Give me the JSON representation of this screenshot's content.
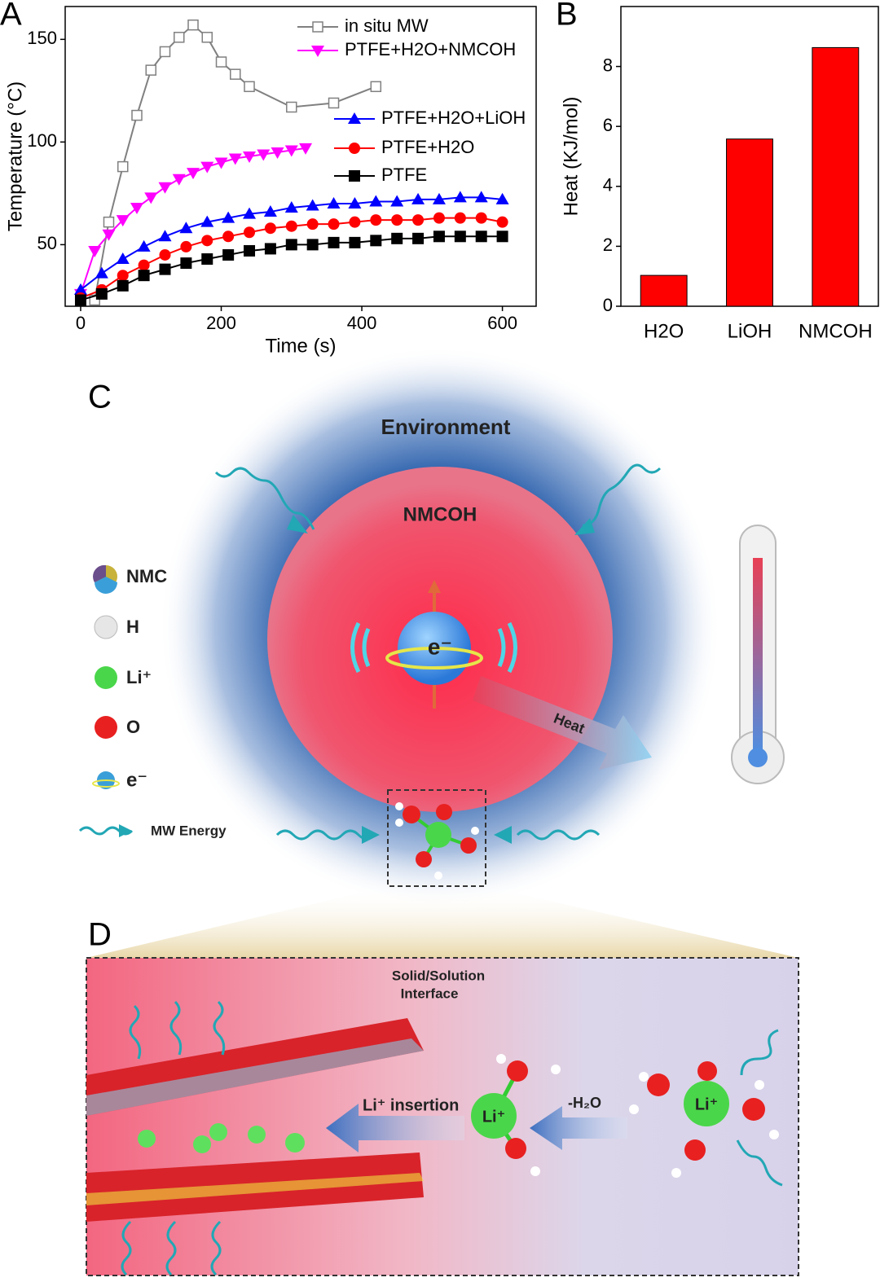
{
  "chart_data": [
    {
      "type": "line",
      "panel": "A",
      "xlabel": "Time (s)",
      "ylabel": "Temperature (°C)",
      "xlim": [
        -22,
        648
      ],
      "xticks": [
        0,
        200,
        400,
        600
      ],
      "ylim": [
        20,
        166
      ],
      "yticks": [
        50,
        100,
        150
      ],
      "legend": "upper right",
      "series": [
        {
          "name": "in situ MW",
          "color": "#808080",
          "marker": "square-open",
          "x": [
            20,
            40,
            60,
            80,
            100,
            120,
            140,
            160,
            180,
            200,
            220,
            240,
            300,
            360,
            420
          ],
          "values": [
            23,
            61,
            88,
            113,
            135,
            144,
            151,
            157,
            151,
            139,
            133,
            127,
            117,
            119,
            127
          ]
        },
        {
          "name": "PTFE+H2O+NMCOH",
          "color": "#ff00ff",
          "marker": "triangle-down",
          "x": [
            0,
            20,
            40,
            60,
            80,
            100,
            120,
            140,
            160,
            180,
            200,
            220,
            240,
            260,
            280,
            300,
            320
          ],
          "values": [
            26,
            47,
            55,
            62,
            68,
            73,
            78,
            82,
            85,
            88,
            90,
            92,
            93,
            94,
            95,
            96,
            97
          ]
        },
        {
          "name": "PTFE+H2O+LiOH",
          "color": "#0000ff",
          "marker": "triangle-up",
          "x": [
            0,
            30,
            60,
            90,
            120,
            150,
            180,
            210,
            240,
            270,
            300,
            330,
            360,
            390,
            420,
            450,
            480,
            510,
            540,
            570,
            600
          ],
          "values": [
            28,
            36,
            43,
            49,
            54,
            58,
            61,
            63,
            65,
            66,
            68,
            69,
            70,
            70,
            71,
            71,
            72,
            72,
            73,
            73,
            72
          ]
        },
        {
          "name": "PTFE+H2O",
          "color": "#ff0000",
          "marker": "circle",
          "x": [
            0,
            30,
            60,
            90,
            120,
            150,
            180,
            210,
            240,
            270,
            300,
            330,
            360,
            390,
            420,
            450,
            480,
            510,
            540,
            570,
            600
          ],
          "values": [
            24,
            28,
            35,
            40,
            45,
            49,
            52,
            54,
            56,
            58,
            59,
            60,
            60,
            61,
            62,
            62,
            62,
            63,
            63,
            63,
            61
          ]
        },
        {
          "name": "PTFE",
          "color": "#000000",
          "marker": "square",
          "x": [
            0,
            30,
            60,
            90,
            120,
            150,
            180,
            210,
            240,
            270,
            300,
            330,
            360,
            390,
            420,
            450,
            480,
            510,
            540,
            570,
            600
          ],
          "values": [
            23,
            26,
            30,
            35,
            38,
            41,
            43,
            45,
            47,
            48,
            50,
            50,
            51,
            51,
            52,
            53,
            53,
            54,
            54,
            54,
            54
          ]
        }
      ]
    },
    {
      "type": "bar",
      "panel": "B",
      "ylabel": "Heat (KJ/mol)",
      "categories": [
        "H2O",
        "LiOH",
        "NMCOH"
      ],
      "values": [
        1.03,
        5.58,
        8.63
      ],
      "color": "#ff0000",
      "ylim": [
        0,
        10
      ],
      "yticks": [
        0,
        2,
        4,
        6,
        8
      ]
    }
  ],
  "panel_c": {
    "label": "C",
    "environment": "Environment",
    "core": "NMCOH",
    "electron": "e⁻",
    "heat": "Heat",
    "legend": [
      "NMC",
      "H",
      "Li⁺",
      "O",
      "e⁻",
      "MW Energy"
    ]
  },
  "panel_d": {
    "label": "D",
    "interface": [
      "Solid/Solution",
      "Interface"
    ],
    "insertion": "Li⁺ insertion",
    "dehydration": "-H₂O",
    "ion_a": "Li⁺",
    "ion_b": "Li⁺"
  }
}
